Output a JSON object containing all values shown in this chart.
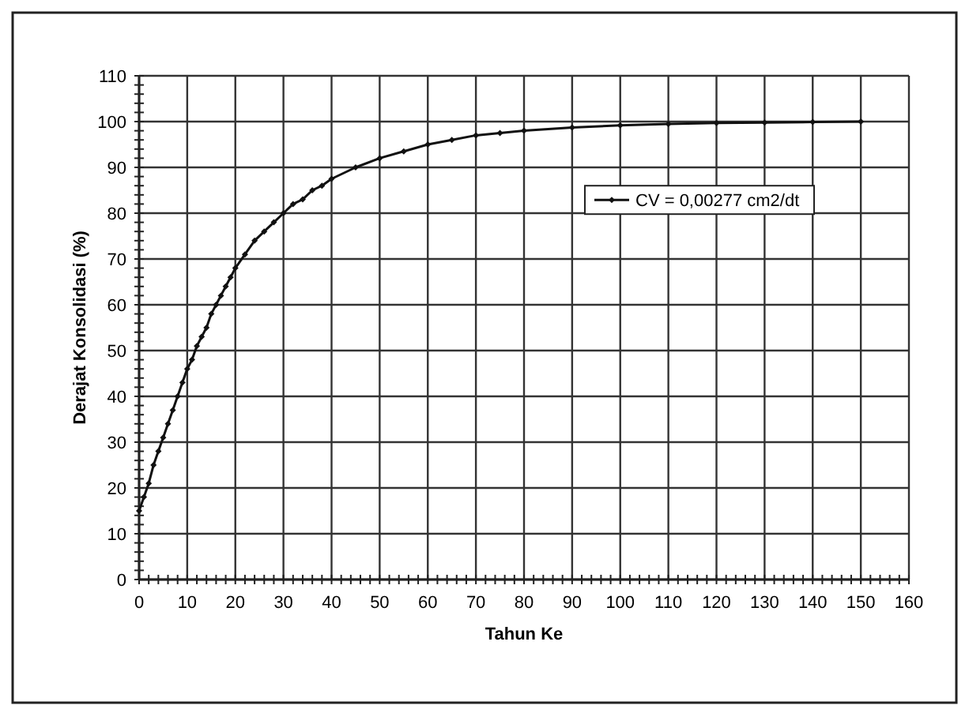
{
  "chart_data": {
    "type": "line",
    "xlabel": "Tahun Ke",
    "ylabel": "Derajat Konsolidasi (%)",
    "x": [
      0,
      1,
      2,
      3,
      4,
      5,
      6,
      7,
      8,
      9,
      10,
      11,
      12,
      13,
      14,
      15,
      16,
      17,
      18,
      19,
      20,
      22,
      24,
      26,
      28,
      30,
      32,
      34,
      36,
      38,
      40,
      45,
      50,
      55,
      60,
      65,
      70,
      75,
      80,
      90,
      100,
      110,
      120,
      130,
      140,
      150
    ],
    "series": [
      {
        "name": "CV = 0,00277 cm2/dt",
        "color": "#111111",
        "values": [
          15,
          18,
          21,
          25,
          28,
          31,
          34,
          37,
          40,
          43,
          46,
          48,
          51,
          53,
          55,
          58,
          60,
          62,
          64,
          66,
          68,
          71,
          74,
          76,
          78,
          80,
          82,
          83,
          85,
          86,
          87.5,
          90,
          92,
          93.5,
          95,
          96,
          97,
          97.5,
          98,
          98.7,
          99.2,
          99.5,
          99.7,
          99.8,
          99.9,
          100
        ]
      }
    ],
    "xlim": [
      0,
      160
    ],
    "xticks": [
      0,
      10,
      20,
      30,
      40,
      50,
      60,
      70,
      80,
      90,
      100,
      110,
      120,
      130,
      140,
      150,
      160
    ],
    "ylim": [
      0,
      110
    ],
    "yticks": [
      0,
      10,
      20,
      30,
      40,
      50,
      60,
      70,
      80,
      90,
      100,
      110
    ],
    "grid": true,
    "legend": "right",
    "marker": "diamond",
    "line_style": "solid"
  }
}
